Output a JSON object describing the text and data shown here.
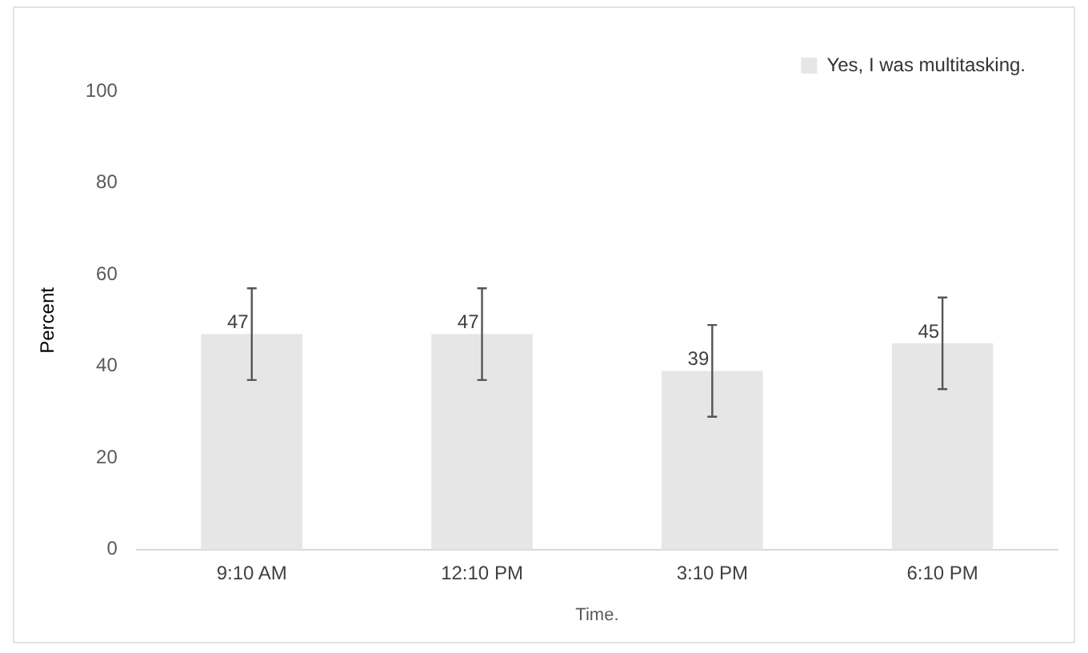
{
  "chart_data": {
    "type": "bar",
    "xlabel": "Time.",
    "ylabel": "Percent",
    "categories": [
      "9:10 AM",
      "12:10 PM",
      "3:10 PM",
      "6:10 PM"
    ],
    "series": [
      {
        "name": "Yes, I was multitasking.",
        "color": "#e6e6e6",
        "values": [
          47,
          47,
          39,
          45
        ],
        "errors": [
          10,
          10,
          10,
          10
        ]
      }
    ],
    "ylim": [
      0,
      100
    ],
    "yticks": [
      0,
      20,
      40,
      60,
      80,
      100
    ],
    "grid": false,
    "legend": "top right",
    "data_labels": true
  }
}
